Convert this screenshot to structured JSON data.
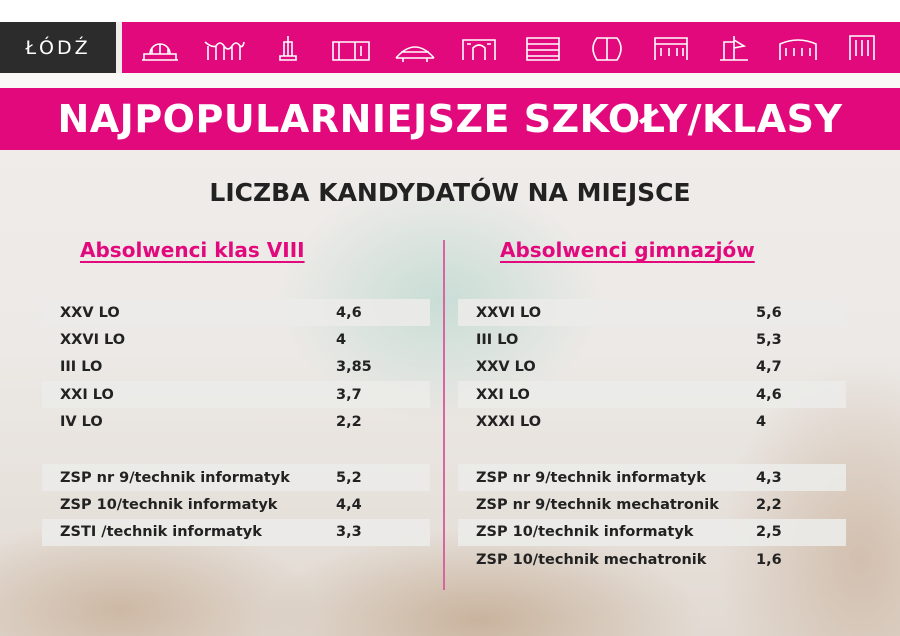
{
  "header": {
    "logo_text": "ŁÓDŹ",
    "title": "NAJPOPULARNIEJSZE SZKOŁY/KLASY",
    "subtitle": "LICZBA KANDYDATÓW NA MIEJSCE",
    "icons": [
      "train-station-icon",
      "tree-pillars-icon",
      "monument-icon",
      "factory-icon",
      "arena-icon",
      "gate-building-icon",
      "office-building-icon",
      "manufaktura-icon",
      "palace-icon",
      "ship-building-icon",
      "townhouse-icon",
      "tower-block-icon"
    ],
    "accent_color": "#e2097c"
  },
  "left": {
    "heading": "Absolwenci klas VIII",
    "lo": [
      {
        "name": "XXV LO",
        "value": "4,6"
      },
      {
        "name": "XXVI LO",
        "value": "4"
      },
      {
        "name": "III LO",
        "value": "3,85"
      },
      {
        "name": "XXI LO",
        "value": "3,7"
      },
      {
        "name": "IV LO",
        "value": "2,2"
      }
    ],
    "tech": [
      {
        "name": "ZSP nr 9/technik informatyk",
        "value": "5,2"
      },
      {
        "name": "ZSP 10/technik informatyk",
        "value": "4,4"
      },
      {
        "name": "ZSTI /technik informatyk",
        "value": "3,3"
      }
    ]
  },
  "right": {
    "heading": "Absolwenci gimnazjów",
    "lo": [
      {
        "name": "XXVI LO",
        "value": "5,6"
      },
      {
        "name": "III LO",
        "value": "5,3"
      },
      {
        "name": "XXV LO",
        "value": "4,7"
      },
      {
        "name": "XXI LO",
        "value": "4,6"
      },
      {
        "name": "XXXI LO",
        "value": "4"
      }
    ],
    "tech": [
      {
        "name": "ZSP nr 9/technik informatyk",
        "value": "4,3"
      },
      {
        "name": "ZSP nr 9/technik mechatronik",
        "value": "2,2"
      },
      {
        "name": "ZSP 10/technik informatyk",
        "value": "2,5"
      },
      {
        "name": "ZSP 10/technik mechatronik",
        "value": "1,6"
      }
    ]
  }
}
